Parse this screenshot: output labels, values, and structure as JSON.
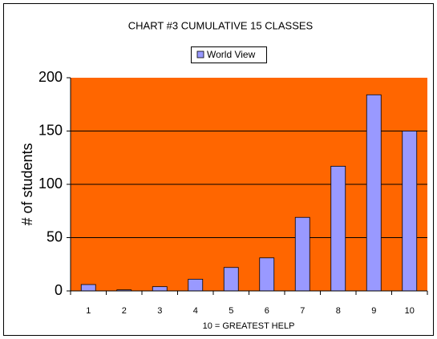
{
  "chart_data": {
    "type": "bar",
    "title": "CHART #3 CUMULATIVE 15 CLASSES",
    "x_label": "10 = GREATEST HELP",
    "y_label": "# of students",
    "categories": [
      "1",
      "2",
      "3",
      "4",
      "5",
      "6",
      "7",
      "8",
      "9",
      "10"
    ],
    "series": [
      {
        "name": "World View",
        "color": "#9999ff",
        "values": [
          6,
          1,
          4,
          11,
          22,
          31,
          69,
          117,
          184,
          150
        ]
      }
    ],
    "ylim": [
      0,
      200
    ],
    "yticks": [
      0,
      50,
      100,
      150,
      200
    ],
    "grid": true,
    "plot_background": "#ff6600",
    "legend": "top"
  }
}
